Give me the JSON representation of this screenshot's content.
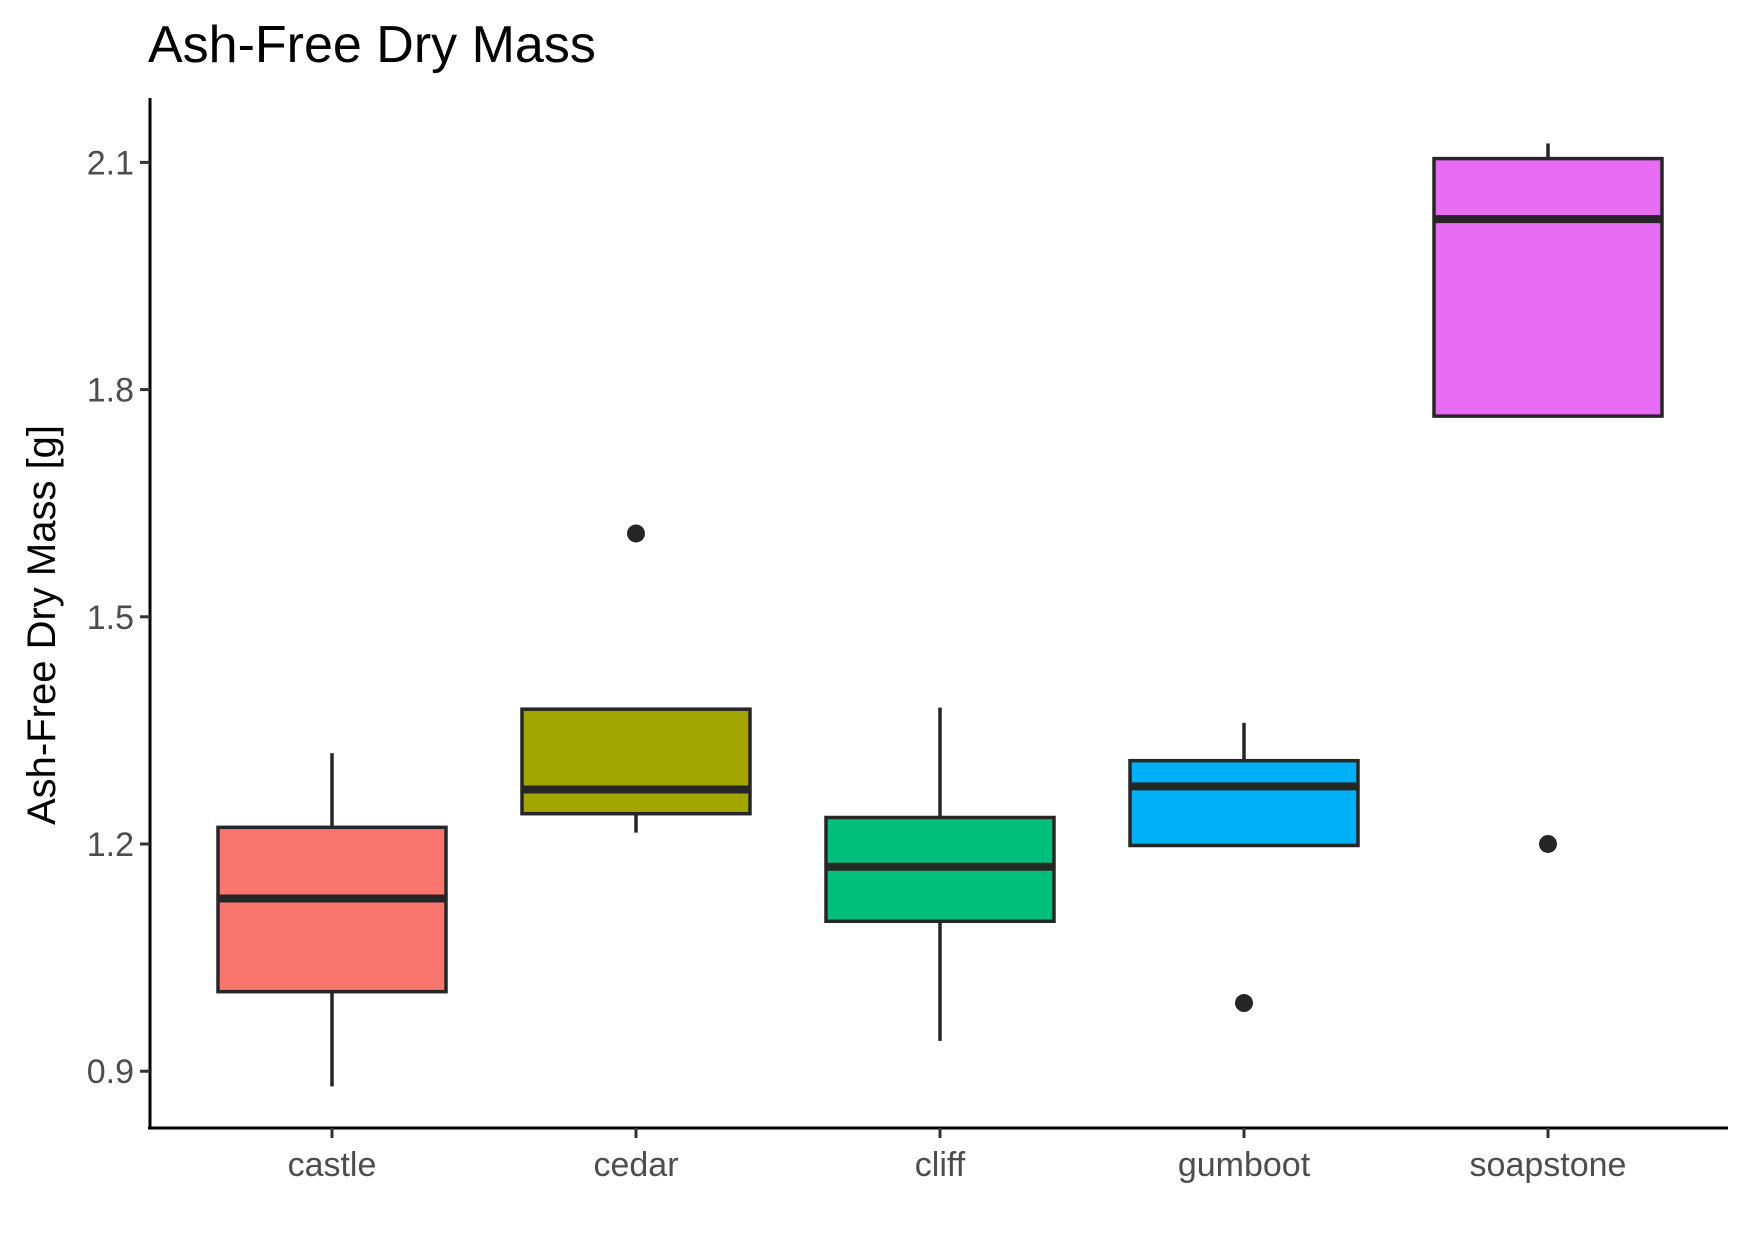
{
  "chart_data": {
    "type": "boxplot",
    "title": "Ash-Free Dry Mass",
    "xlabel": "",
    "ylabel": "Ash-Free Dry Mass [g]",
    "ylim": [
      0.825,
      2.185
    ],
    "yticks": [
      0.9,
      1.2,
      1.5,
      1.8,
      2.1
    ],
    "ytick_labels": [
      "0.9",
      "1.2",
      "1.5",
      "1.8",
      "2.1"
    ],
    "grid": false,
    "legend": "none",
    "categories": [
      "castle",
      "cedar",
      "cliff",
      "gumboot",
      "soapstone"
    ],
    "boxes": [
      {
        "category": "castle",
        "color": "#F8766D",
        "min": 0.88,
        "q1": 1.005,
        "median": 1.128,
        "q3": 1.222,
        "max": 1.32,
        "outliers": []
      },
      {
        "category": "cedar",
        "color": "#A3A500",
        "min": 1.215,
        "q1": 1.24,
        "median": 1.272,
        "q3": 1.378,
        "max": 1.378,
        "outliers": [
          1.61
        ]
      },
      {
        "category": "cliff",
        "color": "#00BF7D",
        "min": 0.94,
        "q1": 1.098,
        "median": 1.17,
        "q3": 1.235,
        "max": 1.38,
        "outliers": []
      },
      {
        "category": "gumboot",
        "color": "#00B0F6",
        "min": 1.198,
        "q1": 1.198,
        "median": 1.276,
        "q3": 1.31,
        "max": 1.36,
        "outliers": [
          0.99
        ]
      },
      {
        "category": "soapstone",
        "color": "#E76BF3",
        "min": 1.765,
        "q1": 1.765,
        "median": 2.025,
        "q3": 2.105,
        "max": 2.125,
        "outliers": [
          1.2
        ]
      }
    ]
  }
}
